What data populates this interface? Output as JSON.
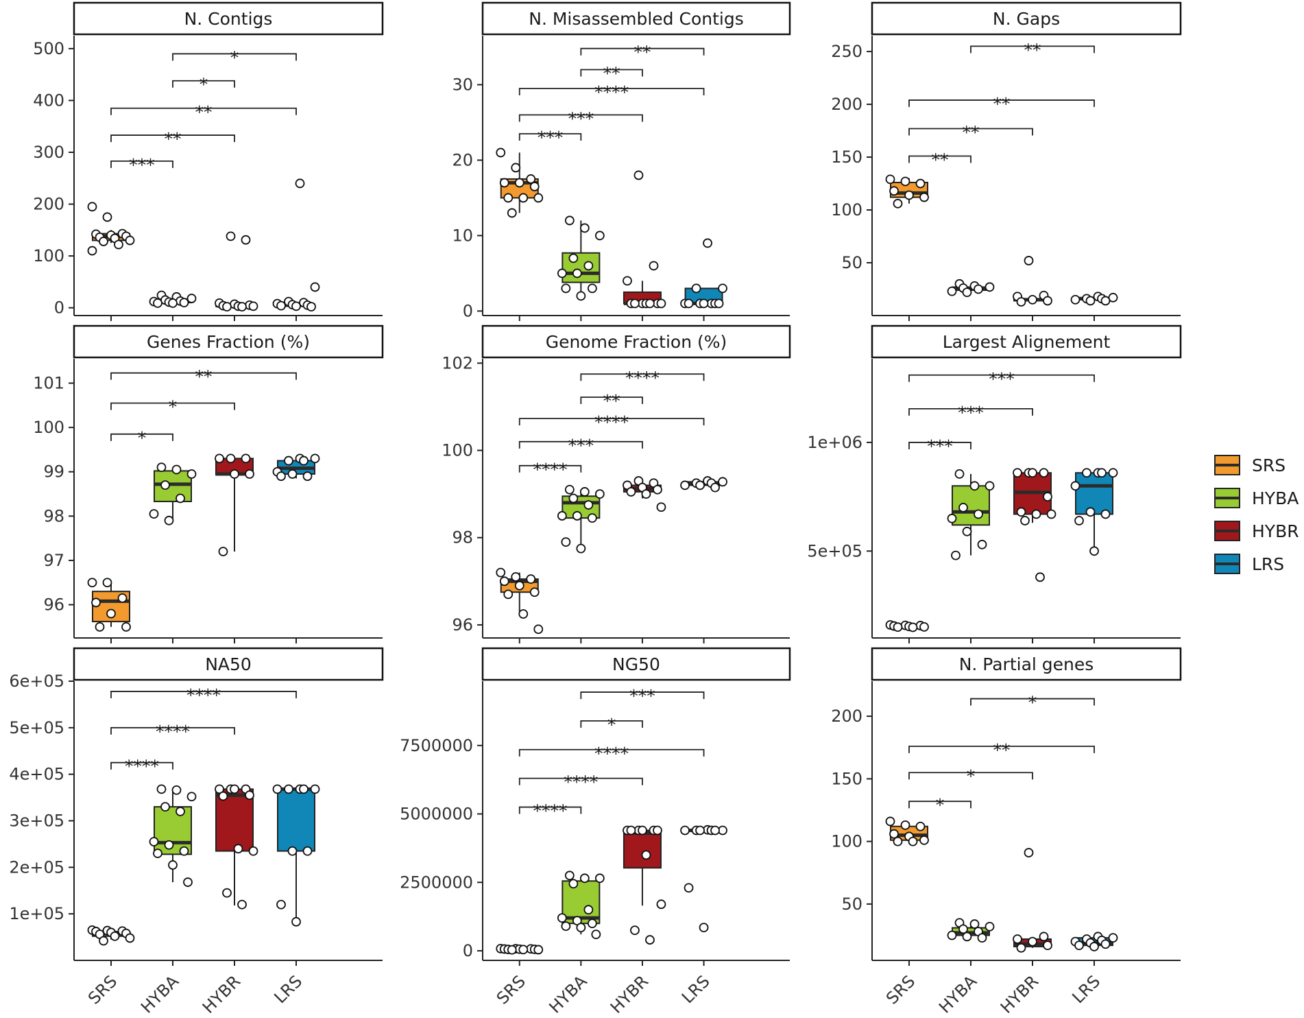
{
  "colors": {
    "SRS": "#F29A2E",
    "HYBA": "#99CC33",
    "HYBR": "#A0181C",
    "LRS": "#1187B8"
  },
  "legend": {
    "items": [
      "SRS",
      "HYBA",
      "HYBR",
      "LRS"
    ]
  },
  "chart_data": [
    {
      "type": "box",
      "title": "N. Contigs",
      "categories": [
        "SRS",
        "HYBA",
        "HYBR",
        "LRS"
      ],
      "ylim": [
        -15,
        525
      ],
      "yticks": [
        0,
        100,
        200,
        300,
        400,
        500
      ],
      "ytick_labels": [
        "0",
        "100",
        "200",
        "300",
        "400",
        "500"
      ],
      "boxes": [
        {
          "lower": 125,
          "q1": 130,
          "median": 138,
          "q3": 143,
          "upper": 150
        },
        {
          "lower": 9,
          "q1": 10,
          "median": 13,
          "q3": 17,
          "upper": 21
        },
        {
          "lower": 2,
          "q1": 3,
          "median": 4,
          "q3": 6,
          "upper": 9
        },
        {
          "lower": 2,
          "q1": 3,
          "median": 5,
          "q3": 7,
          "upper": 10
        }
      ],
      "points": [
        [
          195,
          175,
          143,
          142,
          140,
          138,
          136,
          134,
          130,
          128,
          122,
          110
        ],
        [
          24,
          21,
          18,
          15,
          13,
          12,
          11,
          10,
          9,
          9
        ],
        [
          138,
          131,
          9,
          7,
          5,
          4,
          3,
          3,
          2,
          2
        ],
        [
          240,
          40,
          12,
          10,
          8,
          6,
          5,
          4,
          3,
          2
        ]
      ],
      "comparisons": [
        {
          "from": "SRS",
          "to": "HYBA",
          "y": 283,
          "label": "***"
        },
        {
          "from": "SRS",
          "to": "HYBR",
          "y": 333,
          "label": "**"
        },
        {
          "from": "SRS",
          "to": "LRS",
          "y": 385,
          "label": "**"
        },
        {
          "from": "HYBA",
          "to": "HYBR",
          "y": 438,
          "label": "*"
        },
        {
          "from": "HYBA",
          "to": "LRS",
          "y": 490,
          "label": "*"
        }
      ]
    },
    {
      "type": "box",
      "title": "N. Misassembled Contigs",
      "categories": [
        "SRS",
        "HYBA",
        "HYBR",
        "LRS"
      ],
      "ylim": [
        -0.6,
        36.5
      ],
      "yticks": [
        0,
        10,
        20,
        30
      ],
      "ytick_labels": [
        "0",
        "10",
        "20",
        "30"
      ],
      "boxes": [
        {
          "lower": 13,
          "q1": 15,
          "median": 17,
          "q3": 17.5,
          "upper": 21
        },
        {
          "lower": 2,
          "q1": 3.8,
          "median": 5,
          "q3": 7.7,
          "upper": 12
        },
        {
          "lower": 1,
          "q1": 1,
          "median": 1,
          "q3": 2.5,
          "upper": 4
        },
        {
          "lower": 1,
          "q1": 1,
          "median": 1,
          "q3": 3,
          "upper": 3
        }
      ],
      "points": [
        [
          21,
          19,
          17.5,
          17,
          17,
          16.5,
          15,
          15,
          15,
          13
        ],
        [
          12,
          11,
          10,
          7,
          6,
          5,
          5,
          3,
          3,
          2
        ],
        [
          18,
          6,
          4,
          1,
          1,
          1,
          1,
          1,
          1,
          1
        ],
        [
          9,
          3,
          3,
          1,
          1,
          1,
          1,
          1,
          1,
          1
        ]
      ],
      "comparisons": [
        {
          "from": "SRS",
          "to": "HYBA",
          "y": 23.5,
          "label": "***"
        },
        {
          "from": "SRS",
          "to": "HYBR",
          "y": 26,
          "label": "***"
        },
        {
          "from": "SRS",
          "to": "LRS",
          "y": 29.5,
          "label": "****"
        },
        {
          "from": "HYBA",
          "to": "HYBR",
          "y": 32,
          "label": "**"
        },
        {
          "from": "HYBA",
          "to": "LRS",
          "y": 34.8,
          "label": "**"
        }
      ]
    },
    {
      "type": "box",
      "title": "N. Gaps",
      "categories": [
        "SRS",
        "HYBA",
        "HYBR",
        "LRS"
      ],
      "ylim": [
        0,
        265
      ],
      "yticks": [
        50,
        100,
        150,
        200,
        250
      ],
      "ytick_labels": [
        "50",
        "100",
        "150",
        "200",
        "250"
      ],
      "boxes": [
        {
          "lower": 106,
          "q1": 112,
          "median": 116,
          "q3": 126,
          "upper": 130
        },
        {
          "lower": 22,
          "q1": 24,
          "median": 26,
          "q3": 27,
          "upper": 29
        },
        {
          "lower": 13,
          "q1": 14,
          "median": 15,
          "q3": 16,
          "upper": 19
        },
        {
          "lower": 14,
          "q1": 15,
          "median": 16,
          "q3": 17,
          "upper": 18
        }
      ],
      "points": [
        [
          129,
          127,
          125,
          118,
          114,
          112,
          106
        ],
        [
          30,
          28,
          27,
          26,
          25,
          23,
          22
        ],
        [
          52,
          19,
          18,
          15,
          14,
          13
        ],
        [
          18,
          17,
          16,
          16,
          15,
          14,
          14
        ]
      ],
      "comparisons": [
        {
          "from": "SRS",
          "to": "HYBA",
          "y": 151,
          "label": "**"
        },
        {
          "from": "SRS",
          "to": "HYBR",
          "y": 177,
          "label": "**"
        },
        {
          "from": "SRS",
          "to": "LRS",
          "y": 204,
          "label": "**"
        },
        {
          "from": "HYBA",
          "to": "LRS",
          "y": 255,
          "label": "**"
        }
      ]
    },
    {
      "type": "box",
      "title": "Genes Fraction (%)",
      "categories": [
        "SRS",
        "HYBA",
        "HYBR",
        "LRS"
      ],
      "ylim": [
        95.25,
        101.55
      ],
      "yticks": [
        96,
        97,
        98,
        99,
        100,
        101
      ],
      "ytick_labels": [
        "96",
        "97",
        "98",
        "99",
        "100",
        "101"
      ],
      "boxes": [
        {
          "lower": 95.5,
          "q1": 95.62,
          "median": 96.08,
          "q3": 96.3,
          "upper": 96.5
        },
        {
          "lower": 97.9,
          "q1": 98.33,
          "median": 98.72,
          "q3": 99.02,
          "upper": 99.1
        },
        {
          "lower": 97.2,
          "q1": 98.93,
          "median": 98.95,
          "q3": 99.3,
          "upper": 99.3
        },
        {
          "lower": 98.85,
          "q1": 98.95,
          "median": 99.08,
          "q3": 99.25,
          "upper": 99.3
        }
      ],
      "points": [
        [
          96.5,
          96.5,
          96.15,
          96.05,
          95.8,
          95.5,
          95.5
        ],
        [
          99.1,
          99.05,
          98.95,
          98.7,
          98.4,
          98.05,
          97.9
        ],
        [
          99.3,
          99.3,
          99.3,
          98.95,
          98.95,
          97.2
        ],
        [
          99.3,
          99.3,
          99.25,
          99.25,
          99.0,
          98.95,
          98.9,
          98.9
        ]
      ],
      "comparisons": [
        {
          "from": "SRS",
          "to": "HYBA",
          "y": 99.85,
          "label": "*"
        },
        {
          "from": "SRS",
          "to": "HYBR",
          "y": 100.55,
          "label": "*"
        },
        {
          "from": "SRS",
          "to": "LRS",
          "y": 101.23,
          "label": "**"
        }
      ]
    },
    {
      "type": "box",
      "title": "Genome Fraction (%)",
      "categories": [
        "SRS",
        "HYBA",
        "HYBR",
        "LRS"
      ],
      "ylim": [
        95.7,
        102.1
      ],
      "yticks": [
        96,
        98,
        100,
        102
      ],
      "ytick_labels": [
        "96",
        "98",
        "100",
        "102"
      ],
      "boxes": [
        {
          "lower": 96.3,
          "q1": 96.75,
          "median": 97.0,
          "q3": 97.05,
          "upper": 97.2
        },
        {
          "lower": 97.75,
          "q1": 98.45,
          "median": 98.8,
          "q3": 98.95,
          "upper": 99.1
        },
        {
          "lower": 98.9,
          "q1": 99.05,
          "median": 99.12,
          "q3": 99.2,
          "upper": 99.3
        },
        {
          "lower": 99.15,
          "q1": 99.2,
          "median": 99.25,
          "q3": 99.28,
          "upper": 99.3
        }
      ],
      "points": [
        [
          97.2,
          97.1,
          97.05,
          97.0,
          96.9,
          96.75,
          96.7,
          96.25,
          95.9
        ],
        [
          99.1,
          99.05,
          99.0,
          98.9,
          98.75,
          98.5,
          98.5,
          98.45,
          97.9,
          97.75
        ],
        [
          99.3,
          99.25,
          99.2,
          99.15,
          99.1,
          99.05,
          99.0,
          98.7
        ],
        [
          99.3,
          99.28,
          99.25,
          99.25,
          99.2,
          99.2,
          99.15
        ]
      ],
      "comparisons": [
        {
          "from": "SRS",
          "to": "HYBA",
          "y": 99.65,
          "label": "****"
        },
        {
          "from": "SRS",
          "to": "HYBR",
          "y": 100.2,
          "label": "***"
        },
        {
          "from": "SRS",
          "to": "LRS",
          "y": 100.73,
          "label": "****"
        },
        {
          "from": "HYBA",
          "to": "HYBR",
          "y": 101.22,
          "label": "**"
        },
        {
          "from": "HYBA",
          "to": "LRS",
          "y": 101.75,
          "label": "****"
        }
      ]
    },
    {
      "type": "box",
      "title": "Largest Alignement",
      "categories": [
        "SRS",
        "HYBA",
        "HYBR",
        "LRS"
      ],
      "ylim": [
        100000,
        1385000
      ],
      "yticks": [
        500000,
        1000000
      ],
      "ytick_labels": [
        "5e+05",
        "1e+06"
      ],
      "boxes": [
        {
          "lower": 150000,
          "q1": 152000,
          "median": 155000,
          "q3": 158000,
          "upper": 160000
        },
        {
          "lower": 480000,
          "q1": 620000,
          "median": 680000,
          "q3": 800000,
          "upper": 855000
        },
        {
          "lower": 630000,
          "q1": 670000,
          "median": 770000,
          "q3": 860000,
          "upper": 860000
        },
        {
          "lower": 500000,
          "q1": 670000,
          "median": 800000,
          "q3": 860000,
          "upper": 860000
        }
      ],
      "points": [
        [
          160000,
          158000,
          157000,
          155000,
          153000,
          151000,
          150000,
          149000
        ],
        [
          855000,
          800000,
          800000,
          700000,
          670000,
          650000,
          590000,
          530000,
          480000
        ],
        [
          860000,
          860000,
          860000,
          860000,
          750000,
          680000,
          670000,
          670000,
          640000,
          380000
        ],
        [
          860000,
          860000,
          860000,
          860000,
          800000,
          680000,
          670000,
          640000,
          500000
        ]
      ],
      "comparisons": [
        {
          "from": "SRS",
          "to": "HYBA",
          "y": 1000000,
          "label": "***"
        },
        {
          "from": "SRS",
          "to": "HYBR",
          "y": 1155000,
          "label": "***"
        },
        {
          "from": "SRS",
          "to": "LRS",
          "y": 1310000,
          "label": "***"
        }
      ]
    },
    {
      "type": "box",
      "title": "NA50",
      "categories": [
        "SRS",
        "HYBA",
        "HYBR",
        "LRS"
      ],
      "ylim": [
        0,
        600000
      ],
      "yticks": [
        100000,
        200000,
        300000,
        400000,
        500000,
        600000
      ],
      "ytick_labels": [
        "1e+05",
        "2e+05",
        "3e+05",
        "4e+05",
        "5e+05",
        "6e+05"
      ],
      "boxes": [
        {
          "lower": 45000,
          "q1": 52000,
          "median": 58000,
          "q3": 62000,
          "upper": 65000
        },
        {
          "lower": 168000,
          "q1": 228000,
          "median": 253000,
          "q3": 330000,
          "upper": 368000
        },
        {
          "lower": 118000,
          "q1": 235000,
          "median": 355000,
          "q3": 368000,
          "upper": 368000
        },
        {
          "lower": 83000,
          "q1": 235000,
          "median": 368000,
          "q3": 368000,
          "upper": 368000
        }
      ],
      "points": [
        [
          65000,
          64000,
          63000,
          62000,
          60000,
          58000,
          56000,
          52000,
          48000,
          42000
        ],
        [
          368000,
          366000,
          352000,
          330000,
          320000,
          255000,
          248000,
          235000,
          230000,
          205000,
          168000
        ],
        [
          368000,
          368000,
          368000,
          368000,
          355000,
          353000,
          240000,
          235000,
          145000,
          120000
        ],
        [
          368000,
          368000,
          368000,
          368000,
          368000,
          235000,
          235000,
          120000,
          83000
        ]
      ],
      "comparisons": [
        {
          "from": "SRS",
          "to": "HYBA",
          "y": 425000,
          "label": "****"
        },
        {
          "from": "SRS",
          "to": "HYBR",
          "y": 500000,
          "label": "****"
        },
        {
          "from": "SRS",
          "to": "LRS",
          "y": 578000,
          "label": "****"
        }
      ]
    },
    {
      "type": "box",
      "title": "NG50",
      "categories": [
        "SRS",
        "HYBA",
        "HYBR",
        "LRS"
      ],
      "ylim": [
        -350000,
        9850000
      ],
      "yticks": [
        0,
        2500000,
        5000000,
        7500000
      ],
      "ytick_labels": [
        "0",
        "2500000",
        "5000000",
        "7500000"
      ],
      "boxes": [
        {
          "lower": 30000,
          "q1": 40000,
          "median": 55000,
          "q3": 65000,
          "upper": 75000
        },
        {
          "lower": 600000,
          "q1": 1000000,
          "median": 1200000,
          "q3": 2550000,
          "upper": 2700000
        },
        {
          "lower": 1650000,
          "q1": 3030000,
          "median": 4300000,
          "q3": 4400000,
          "upper": 4400000
        },
        {
          "lower": 4350000,
          "q1": 4380000,
          "median": 4400000,
          "q3": 4420000,
          "upper": 4430000
        }
      ],
      "points": [
        [
          80000,
          75000,
          70000,
          65000,
          60000,
          55000,
          50000,
          45000,
          40000,
          35000
        ],
        [
          2750000,
          2650000,
          2650000,
          2450000,
          1500000,
          1200000,
          1100000,
          1000000,
          900000,
          850000,
          600000
        ],
        [
          4400000,
          4400000,
          4400000,
          4400000,
          4400000,
          4400000,
          3500000,
          1700000,
          750000,
          400000
        ],
        [
          4420000,
          4400000,
          4400000,
          4400000,
          4400000,
          4400000,
          4400000,
          2300000,
          850000
        ]
      ],
      "comparisons": [
        {
          "from": "SRS",
          "to": "HYBA",
          "y": 5250000,
          "label": "****"
        },
        {
          "from": "SRS",
          "to": "HYBR",
          "y": 6300000,
          "label": "****"
        },
        {
          "from": "SRS",
          "to": "LRS",
          "y": 7350000,
          "label": "****"
        },
        {
          "from": "HYBA",
          "to": "HYBR",
          "y": 8400000,
          "label": "*"
        },
        {
          "from": "HYBA",
          "to": "LRS",
          "y": 9450000,
          "label": "***"
        }
      ]
    },
    {
      "type": "box",
      "title": "N. Partial genes",
      "categories": [
        "SRS",
        "HYBA",
        "HYBR",
        "LRS"
      ],
      "ylim": [
        5,
        228
      ],
      "yticks": [
        50,
        100,
        150,
        200
      ],
      "ytick_labels": [
        "50",
        "100",
        "150",
        "200"
      ],
      "boxes": [
        {
          "lower": 100,
          "q1": 101,
          "median": 105,
          "q3": 112,
          "upper": 115
        },
        {
          "lower": 23,
          "q1": 25,
          "median": 27,
          "q3": 31,
          "upper": 35
        },
        {
          "lower": 15,
          "q1": 16,
          "median": 18,
          "q3": 22,
          "upper": 23
        },
        {
          "lower": 16,
          "q1": 17,
          "median": 19,
          "q3": 23,
          "upper": 24
        }
      ],
      "points": [
        [
          116,
          113,
          112,
          106,
          104,
          101,
          100,
          100
        ],
        [
          35,
          34,
          32,
          30,
          28,
          25,
          24,
          23
        ],
        [
          91,
          24,
          22,
          20,
          17,
          15
        ],
        [
          24,
          23,
          22,
          21,
          20,
          19,
          18,
          17,
          16
        ]
      ],
      "comparisons": [
        {
          "from": "SRS",
          "to": "HYBA",
          "y": 132,
          "label": "*"
        },
        {
          "from": "SRS",
          "to": "HYBR",
          "y": 155,
          "label": "*"
        },
        {
          "from": "SRS",
          "to": "LRS",
          "y": 176,
          "label": "**"
        },
        {
          "from": "HYBA",
          "to": "LRS",
          "y": 214,
          "label": "*"
        }
      ]
    }
  ]
}
